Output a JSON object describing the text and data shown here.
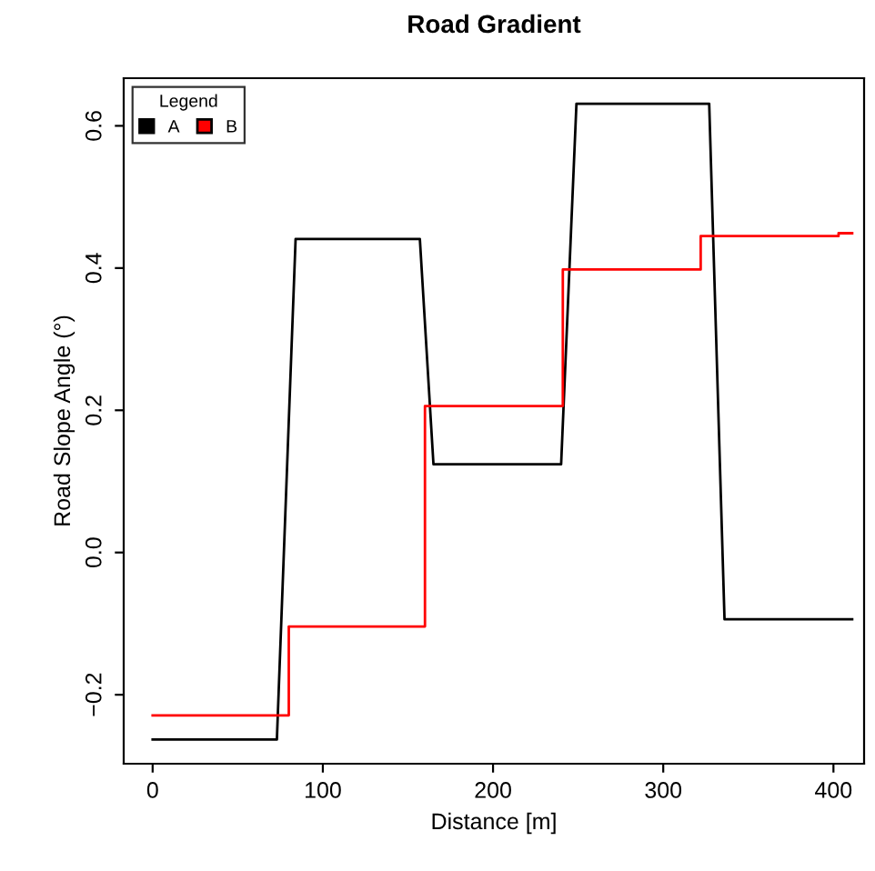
{
  "chart_data": {
    "type": "line",
    "title": "Road Gradient",
    "xlabel": "Distance [m]",
    "ylabel": "Road Slope Angle (°)",
    "legend_title": "Legend",
    "legend": "top left",
    "grid": false,
    "xlim": [
      -17,
      418
    ],
    "xticks": [
      0,
      100,
      200,
      300,
      400
    ],
    "ylim": [
      -0.297,
      0.667
    ],
    "yticks": [
      -0.2,
      {
        "value": 0,
        "label": "0.0"
      },
      0.2,
      0.4,
      0.6
    ],
    "series": [
      {
        "name": "A",
        "color": "#000000",
        "x": [
          0,
          73,
          84,
          157,
          165,
          240,
          249,
          327,
          336,
          411
        ],
        "values": [
          -0.263,
          -0.263,
          0.441,
          0.441,
          0.124,
          0.124,
          0.631,
          0.631,
          -0.094,
          -0.094
        ]
      },
      {
        "name": "B",
        "type": "step",
        "color": "#ff0000",
        "x": [
          0,
          80,
          160,
          241,
          322,
          403,
          411
        ],
        "values": [
          -0.229,
          -0.104,
          0.206,
          0.398,
          0.445,
          0.449,
          0.449
        ]
      }
    ]
  }
}
